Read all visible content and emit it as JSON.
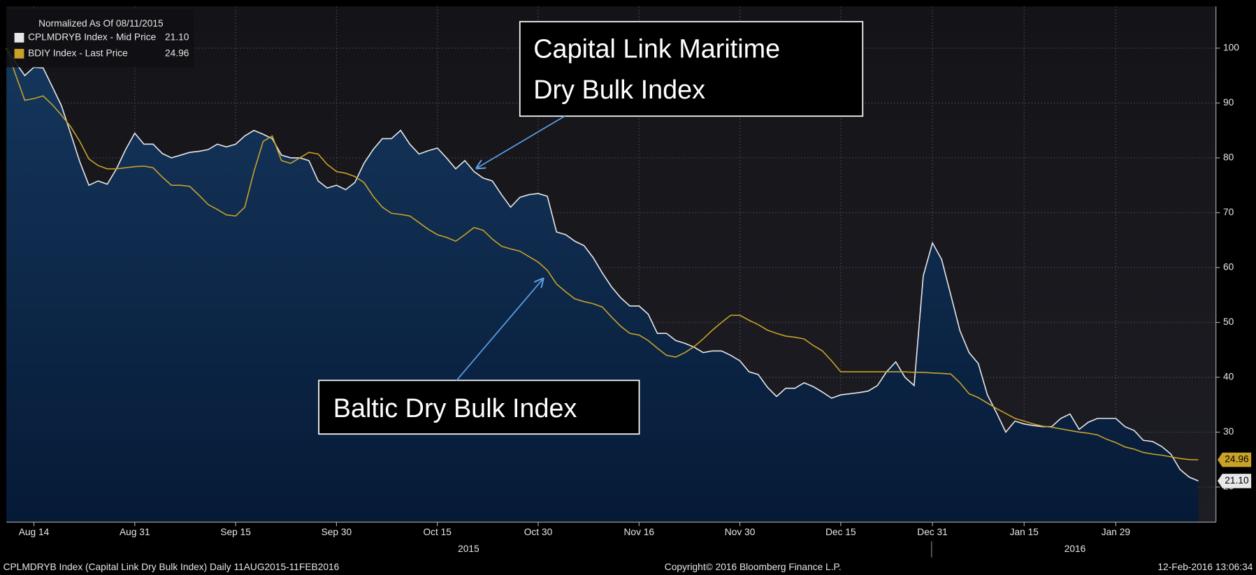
{
  "chart_data": {
    "type": "line",
    "legend_title": "Normalized As Of 08/11/2015",
    "categories": [
      null,
      null,
      null,
      "Aug 14",
      null,
      null,
      null,
      null,
      null,
      null,
      null,
      null,
      null,
      null,
      "Aug 31",
      null,
      null,
      null,
      null,
      null,
      null,
      null,
      null,
      null,
      null,
      "Sep 15",
      null,
      null,
      null,
      null,
      null,
      null,
      null,
      null,
      null,
      null,
      "Sep 30",
      null,
      null,
      null,
      null,
      null,
      null,
      null,
      null,
      null,
      null,
      "Oct 15",
      null,
      null,
      null,
      null,
      null,
      null,
      null,
      null,
      null,
      null,
      "Oct 30",
      null,
      null,
      null,
      null,
      null,
      null,
      null,
      null,
      null,
      null,
      "Nov 16",
      null,
      null,
      null,
      null,
      null,
      null,
      null,
      null,
      null,
      null,
      "Nov 30",
      null,
      null,
      null,
      null,
      null,
      null,
      null,
      null,
      null,
      null,
      "Dec 15",
      null,
      null,
      null,
      null,
      null,
      null,
      null,
      null,
      null,
      "Dec 31",
      null,
      null,
      null,
      null,
      null,
      null,
      null,
      null,
      null,
      "Jan 15",
      null,
      null,
      null,
      null,
      null,
      null,
      null,
      null,
      null,
      "Jan 29",
      null,
      null,
      null,
      null,
      null,
      null,
      null,
      null,
      null
    ],
    "x_group_labels": [
      "2015",
      "2016"
    ],
    "series": [
      {
        "name": "CPLMDRYB Index - Mid Price",
        "last_label": "21.10",
        "color": "#e8e8e8",
        "area": true,
        "values": [
          100,
          97.4,
          95,
          96.5,
          96.4,
          93,
          89.5,
          84.5,
          79.3,
          75,
          75.8,
          75.2,
          78,
          81.5,
          84.5,
          82.5,
          82.5,
          80.8,
          80,
          80.5,
          81,
          81.2,
          81.5,
          82.5,
          82,
          82.5,
          84,
          85,
          84.3,
          83.5,
          80.5,
          80,
          80,
          79.5,
          75.8,
          74.5,
          75,
          74.2,
          75.5,
          79,
          81.5,
          83.5,
          83.5,
          85,
          82.5,
          80.7,
          81.3,
          81.8,
          80,
          78,
          79.5,
          77.5,
          76.3,
          75.8,
          73.3,
          71,
          72.8,
          73.3,
          73.5,
          73,
          66.5,
          66,
          64.8,
          64,
          61.8,
          59,
          56.5,
          54.5,
          53,
          53,
          51.5,
          48,
          48,
          46.7,
          46.2,
          45.5,
          44.5,
          44.8,
          44.8,
          44,
          43,
          41,
          40.5,
          38.2,
          36.5,
          38,
          38,
          39,
          38.3,
          37.3,
          36.2,
          36.8,
          37,
          37.2,
          37.5,
          38.5,
          41,
          42.8,
          40,
          38.5,
          58.5,
          64.5,
          61.5,
          55,
          48.5,
          44.5,
          42.5,
          36.8,
          33.5,
          30,
          32,
          31.5,
          31.2,
          31,
          31,
          32.5,
          33.3,
          30.5,
          31.8,
          32.5,
          32.5,
          32.5,
          31,
          30.3,
          28.5,
          28.3,
          27.4,
          26,
          23.2,
          21.8,
          21.1
        ]
      },
      {
        "name": "BDIY Index - Last Price",
        "last_label": "24.96",
        "color": "#c9a227",
        "area": false,
        "values": [
          100,
          95.2,
          90.5,
          90.8,
          91.3,
          89.7,
          87.8,
          85.7,
          83,
          79.8,
          78.6,
          78,
          78,
          78.2,
          78.4,
          78.5,
          78.2,
          76.5,
          75,
          75,
          74.8,
          73.2,
          71.5,
          70.6,
          69.6,
          69.4,
          71,
          77.5,
          83,
          84,
          79.5,
          79,
          80,
          81,
          80.7,
          78.8,
          77.5,
          77.2,
          76.6,
          75.5,
          73,
          71,
          69.9,
          69.7,
          69.4,
          68.2,
          67,
          66,
          65.5,
          64.8,
          66,
          67.3,
          66.8,
          65.2,
          63.9,
          63.4,
          63,
          62,
          61,
          59.5,
          57,
          55.6,
          54.3,
          53.8,
          53.4,
          52.8,
          51,
          49.3,
          48,
          47.7,
          46.7,
          45.3,
          44,
          43.7,
          44.5,
          45.6,
          47,
          48.6,
          50,
          51.3,
          51.3,
          50.4,
          49.6,
          48.6,
          48,
          47.5,
          47.3,
          47,
          45.8,
          44.8,
          43,
          41,
          41,
          41,
          41,
          41,
          41,
          41,
          41,
          40.9,
          40.9,
          40.8,
          40.7,
          40.6,
          39,
          37,
          36.3,
          35.3,
          34.3,
          33.4,
          32.5,
          32,
          31.5,
          31.1,
          30.9,
          30.6,
          30.3,
          30,
          29.8,
          29.5,
          28.7,
          28.1,
          27.3,
          26.9,
          26.3,
          26,
          25.8,
          25.5,
          25.2,
          25,
          24.96
        ]
      }
    ],
    "ylim": [
      13.6,
      107.6
    ],
    "yticks": [
      20,
      30,
      40,
      50,
      60,
      70,
      80,
      90,
      100
    ],
    "grid": true,
    "annotations": [
      {
        "lines": [
          "Capital Link Maritime",
          "Dry Bulk Index"
        ]
      },
      {
        "lines": [
          "Baltic Dry Bulk Index"
        ]
      }
    ],
    "footer": {
      "left": "CPLMDRYB Index (Capital Link Dry Bulk Index)  Daily 11AUG2015-11FEB2016",
      "center": "Copyright© 2016 Bloomberg Finance L.P.",
      "right": "12-Feb-2016 13:06:34"
    }
  }
}
